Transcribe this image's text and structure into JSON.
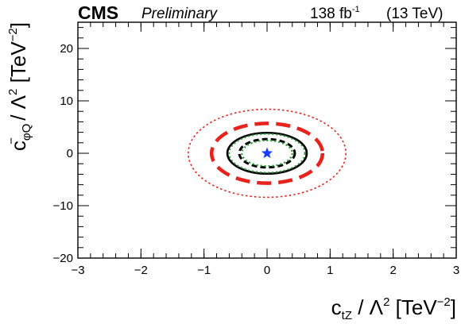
{
  "header": {
    "experiment": "CMS",
    "status": "Preliminary",
    "luminosity": "138 fb",
    "lumi_exponent": "-1",
    "energy": "(13 TeV)"
  },
  "chart_data": {
    "type": "contour",
    "xlabel": "c_tZ / Λ² [TeV⁻²]",
    "ylabel": "c⁻_φQ / Λ² [TeV⁻²]",
    "xlabel_parts": {
      "base": "c",
      "sub": "tZ",
      "mid": " / Λ",
      "pow": "2",
      "unit": " [TeV",
      "unit_pow": "−2",
      "end": "]"
    },
    "ylabel_parts": {
      "base": "c",
      "sub": "φQ",
      "sup": "−",
      "mid": " / Λ",
      "pow": "2",
      "unit": " [TeV",
      "unit_pow": "−2",
      "end": "]"
    },
    "xlim": [
      -3,
      3
    ],
    "ylim": [
      -20,
      25
    ],
    "x_ticks": [
      -3,
      -2,
      -1,
      0,
      1,
      2,
      3
    ],
    "x_tick_labels": [
      "−3",
      "−2",
      "−1",
      "0",
      "1",
      "2",
      "3"
    ],
    "y_ticks": [
      -20,
      -10,
      0,
      10,
      20
    ],
    "y_tick_labels": [
      "−20",
      "−10",
      "0",
      "10",
      "20"
    ],
    "best_fit": {
      "x": 0.0,
      "y": 0.0,
      "color": "#1a3cff"
    },
    "contours": [
      {
        "style": "red-dotted",
        "color": "#e8231e",
        "center": [
          0.0,
          0.0
        ],
        "half_width_x": 1.25,
        "half_height_y": 8.4
      },
      {
        "style": "red-dashed",
        "color": "#e8231e",
        "center": [
          0.0,
          0.0
        ],
        "half_width_x": 0.88,
        "half_height_y": 5.7
      },
      {
        "style": "black-solid",
        "color": "#000000",
        "center": [
          0.0,
          0.0
        ],
        "half_width_x": 0.63,
        "half_height_y": 3.9
      },
      {
        "style": "green-dotted",
        "color": "#1f9e2e",
        "center": [
          0.0,
          0.0
        ],
        "half_width_x": 0.6,
        "half_height_y": 3.7
      },
      {
        "style": "black-dashed",
        "color": "#000000",
        "center": [
          0.0,
          0.0
        ],
        "half_width_x": 0.44,
        "half_height_y": 2.7
      },
      {
        "style": "green-inner",
        "color": "#1f9e2e",
        "center": [
          0.0,
          0.0
        ],
        "half_width_x": 0.4,
        "half_height_y": 2.45
      }
    ]
  }
}
